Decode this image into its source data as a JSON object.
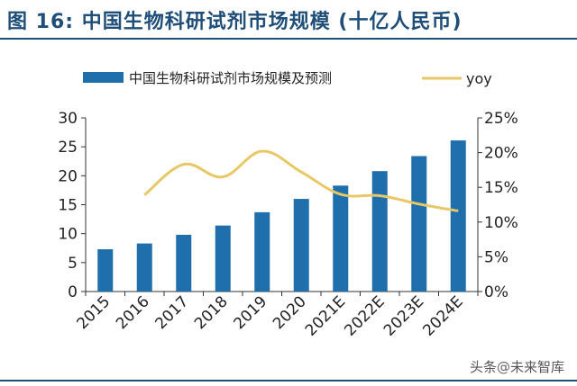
{
  "header": {
    "title": "图 16:  中国生物科研试剂市场规模 (十亿人民币)"
  },
  "watermark": {
    "prefix": "头条",
    "at": "@",
    "name": "未来智库"
  },
  "colors": {
    "bar": "#1f6fad",
    "line": "#e8c766",
    "title": "#1f4e79",
    "axis": "#333333"
  },
  "chart_data": {
    "type": "bar",
    "categories": [
      "2015",
      "2016",
      "2017",
      "2018",
      "2019",
      "2020",
      "2021E",
      "2022E",
      "2023E",
      "2024E"
    ],
    "series": [
      {
        "name": "中国生物科研试剂市场规模及预测",
        "type": "bar",
        "axis": "left",
        "values": [
          7.3,
          8.3,
          9.8,
          11.4,
          13.7,
          16.0,
          18.3,
          20.8,
          23.4,
          26.1
        ]
      },
      {
        "name": "yoy",
        "type": "line",
        "axis": "right",
        "values": [
          null,
          13.9,
          18.3,
          16.5,
          20.2,
          17.2,
          14.0,
          13.8,
          12.6,
          11.6
        ]
      }
    ],
    "y_left": {
      "lim": [
        0,
        30
      ],
      "ticks": [
        0,
        5,
        10,
        15,
        20,
        25,
        30
      ]
    },
    "y_right": {
      "lim": [
        0,
        25
      ],
      "ticks": [
        "0%",
        "5%",
        "10%",
        "15%",
        "20%",
        "25%"
      ]
    },
    "legend_position": "top",
    "grid": false
  }
}
